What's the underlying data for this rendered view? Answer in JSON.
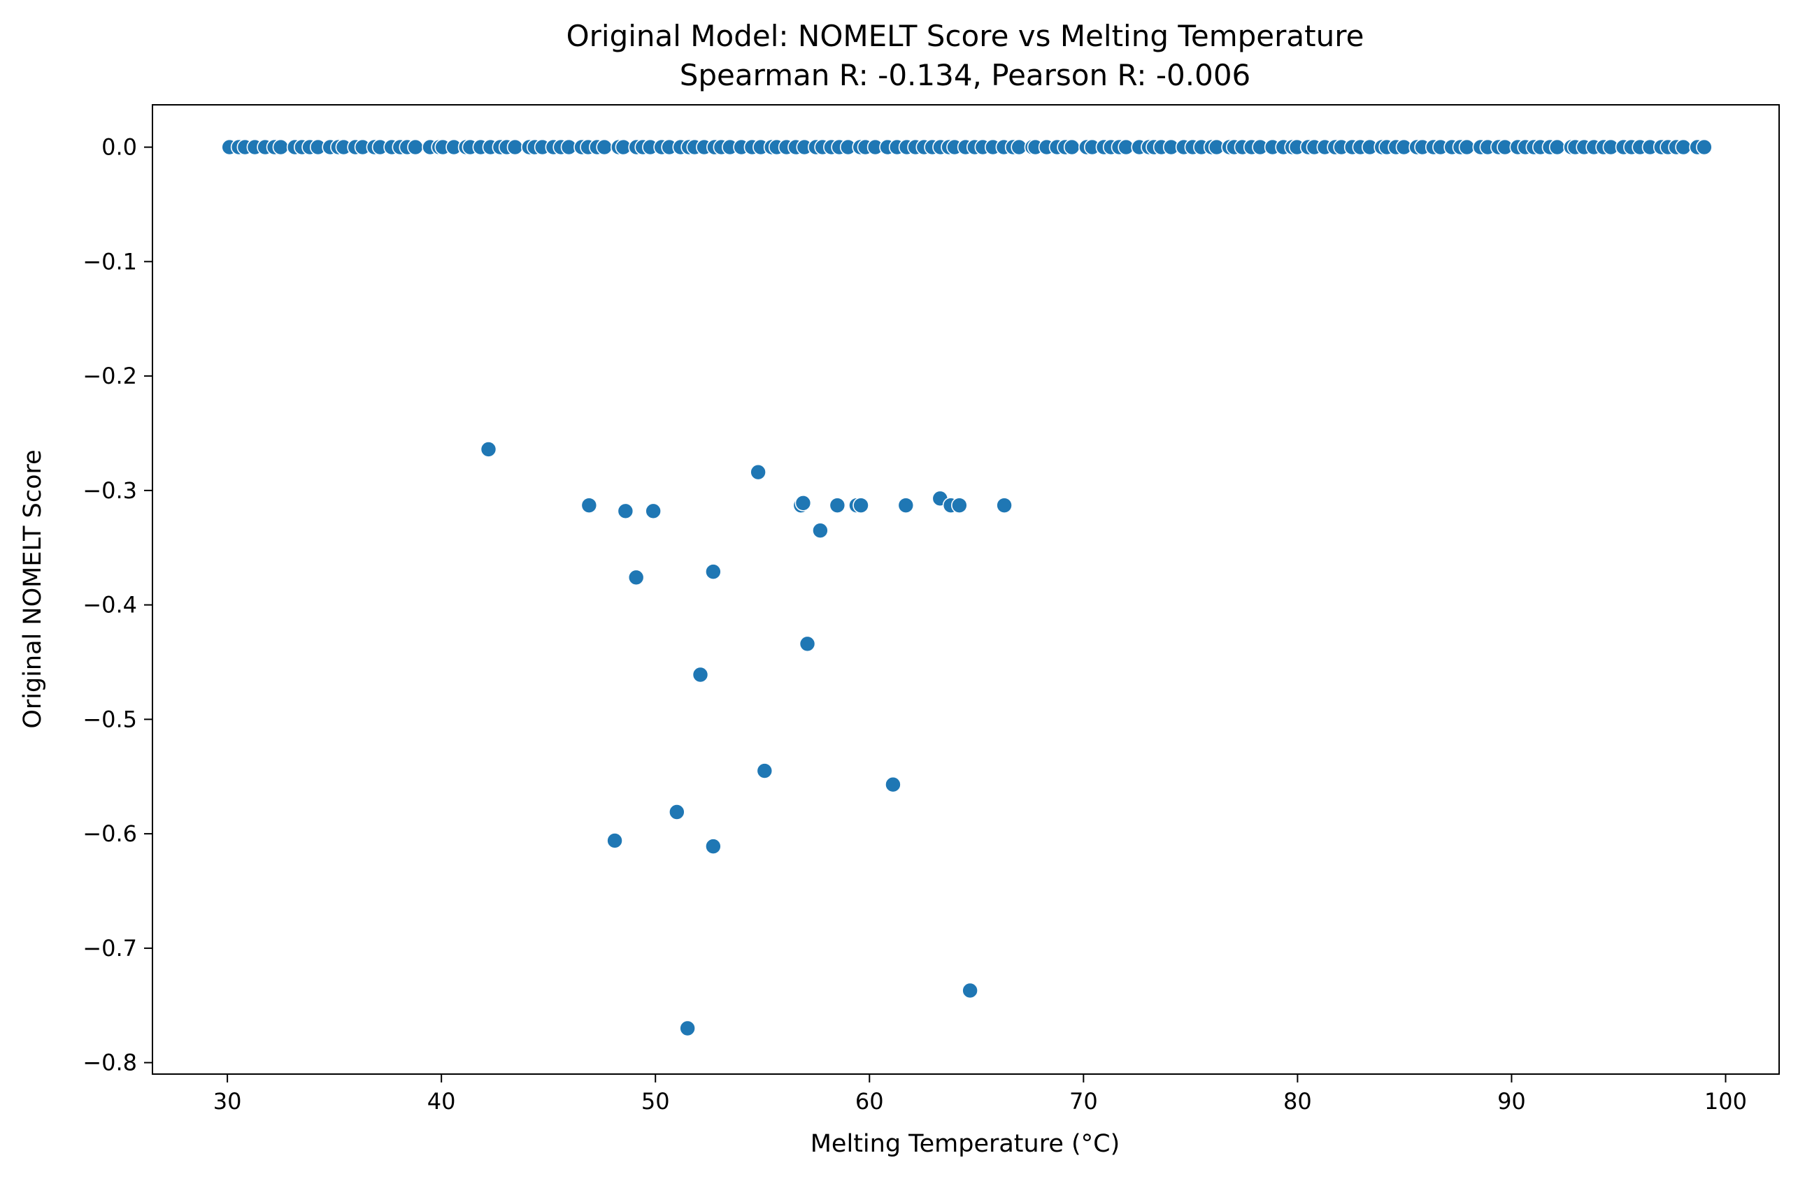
{
  "chart_data": {
    "type": "scatter",
    "title": "Original Model: NOMELT Score vs Melting Temperature",
    "subtitle": "Spearman R: -0.134, Pearson R: -0.006",
    "xlabel": "Melting Temperature (°C)",
    "ylabel": "Original NOMELT Score",
    "xlim": [
      26.5,
      102.5
    ],
    "ylim": [
      -0.81,
      0.037
    ],
    "xticks": [
      30,
      40,
      50,
      60,
      70,
      80,
      90,
      100
    ],
    "yticks": [
      0.0,
      -0.1,
      -0.2,
      -0.3,
      -0.4,
      -0.5,
      -0.6,
      -0.7,
      -0.8
    ],
    "xtick_labels": [
      "30",
      "40",
      "50",
      "60",
      "70",
      "80",
      "90",
      "100"
    ],
    "ytick_labels": [
      "0.0",
      "−0.1",
      "−0.2",
      "−0.3",
      "−0.4",
      "−0.5",
      "−0.6",
      "−0.7",
      "−0.8"
    ],
    "grid": false,
    "colors": {
      "marker": "#1f77b4",
      "marker_edge": "#ffffff",
      "axes": "#000000"
    },
    "zero_row_x_range": [
      30.1,
      99.0
    ],
    "series": [
      {
        "points": [
          {
            "x": 42.2,
            "y": -0.264
          },
          {
            "x": 54.8,
            "y": -0.284
          },
          {
            "x": 46.9,
            "y": -0.313
          },
          {
            "x": 48.6,
            "y": -0.318
          },
          {
            "x": 49.9,
            "y": -0.318
          },
          {
            "x": 56.8,
            "y": -0.313
          },
          {
            "x": 56.9,
            "y": -0.311
          },
          {
            "x": 58.5,
            "y": -0.313
          },
          {
            "x": 59.4,
            "y": -0.313
          },
          {
            "x": 59.6,
            "y": -0.313
          },
          {
            "x": 61.7,
            "y": -0.313
          },
          {
            "x": 63.3,
            "y": -0.307
          },
          {
            "x": 63.8,
            "y": -0.313
          },
          {
            "x": 64.2,
            "y": -0.313
          },
          {
            "x": 66.3,
            "y": -0.313
          },
          {
            "x": 57.7,
            "y": -0.335
          },
          {
            "x": 49.1,
            "y": -0.376
          },
          {
            "x": 52.7,
            "y": -0.371
          },
          {
            "x": 57.1,
            "y": -0.434
          },
          {
            "x": 52.1,
            "y": -0.461
          },
          {
            "x": 55.1,
            "y": -0.545
          },
          {
            "x": 61.1,
            "y": -0.557
          },
          {
            "x": 51.0,
            "y": -0.581
          },
          {
            "x": 48.1,
            "y": -0.606
          },
          {
            "x": 52.7,
            "y": -0.611
          },
          {
            "x": 64.7,
            "y": -0.737
          },
          {
            "x": 51.5,
            "y": -0.77
          }
        ]
      }
    ]
  }
}
